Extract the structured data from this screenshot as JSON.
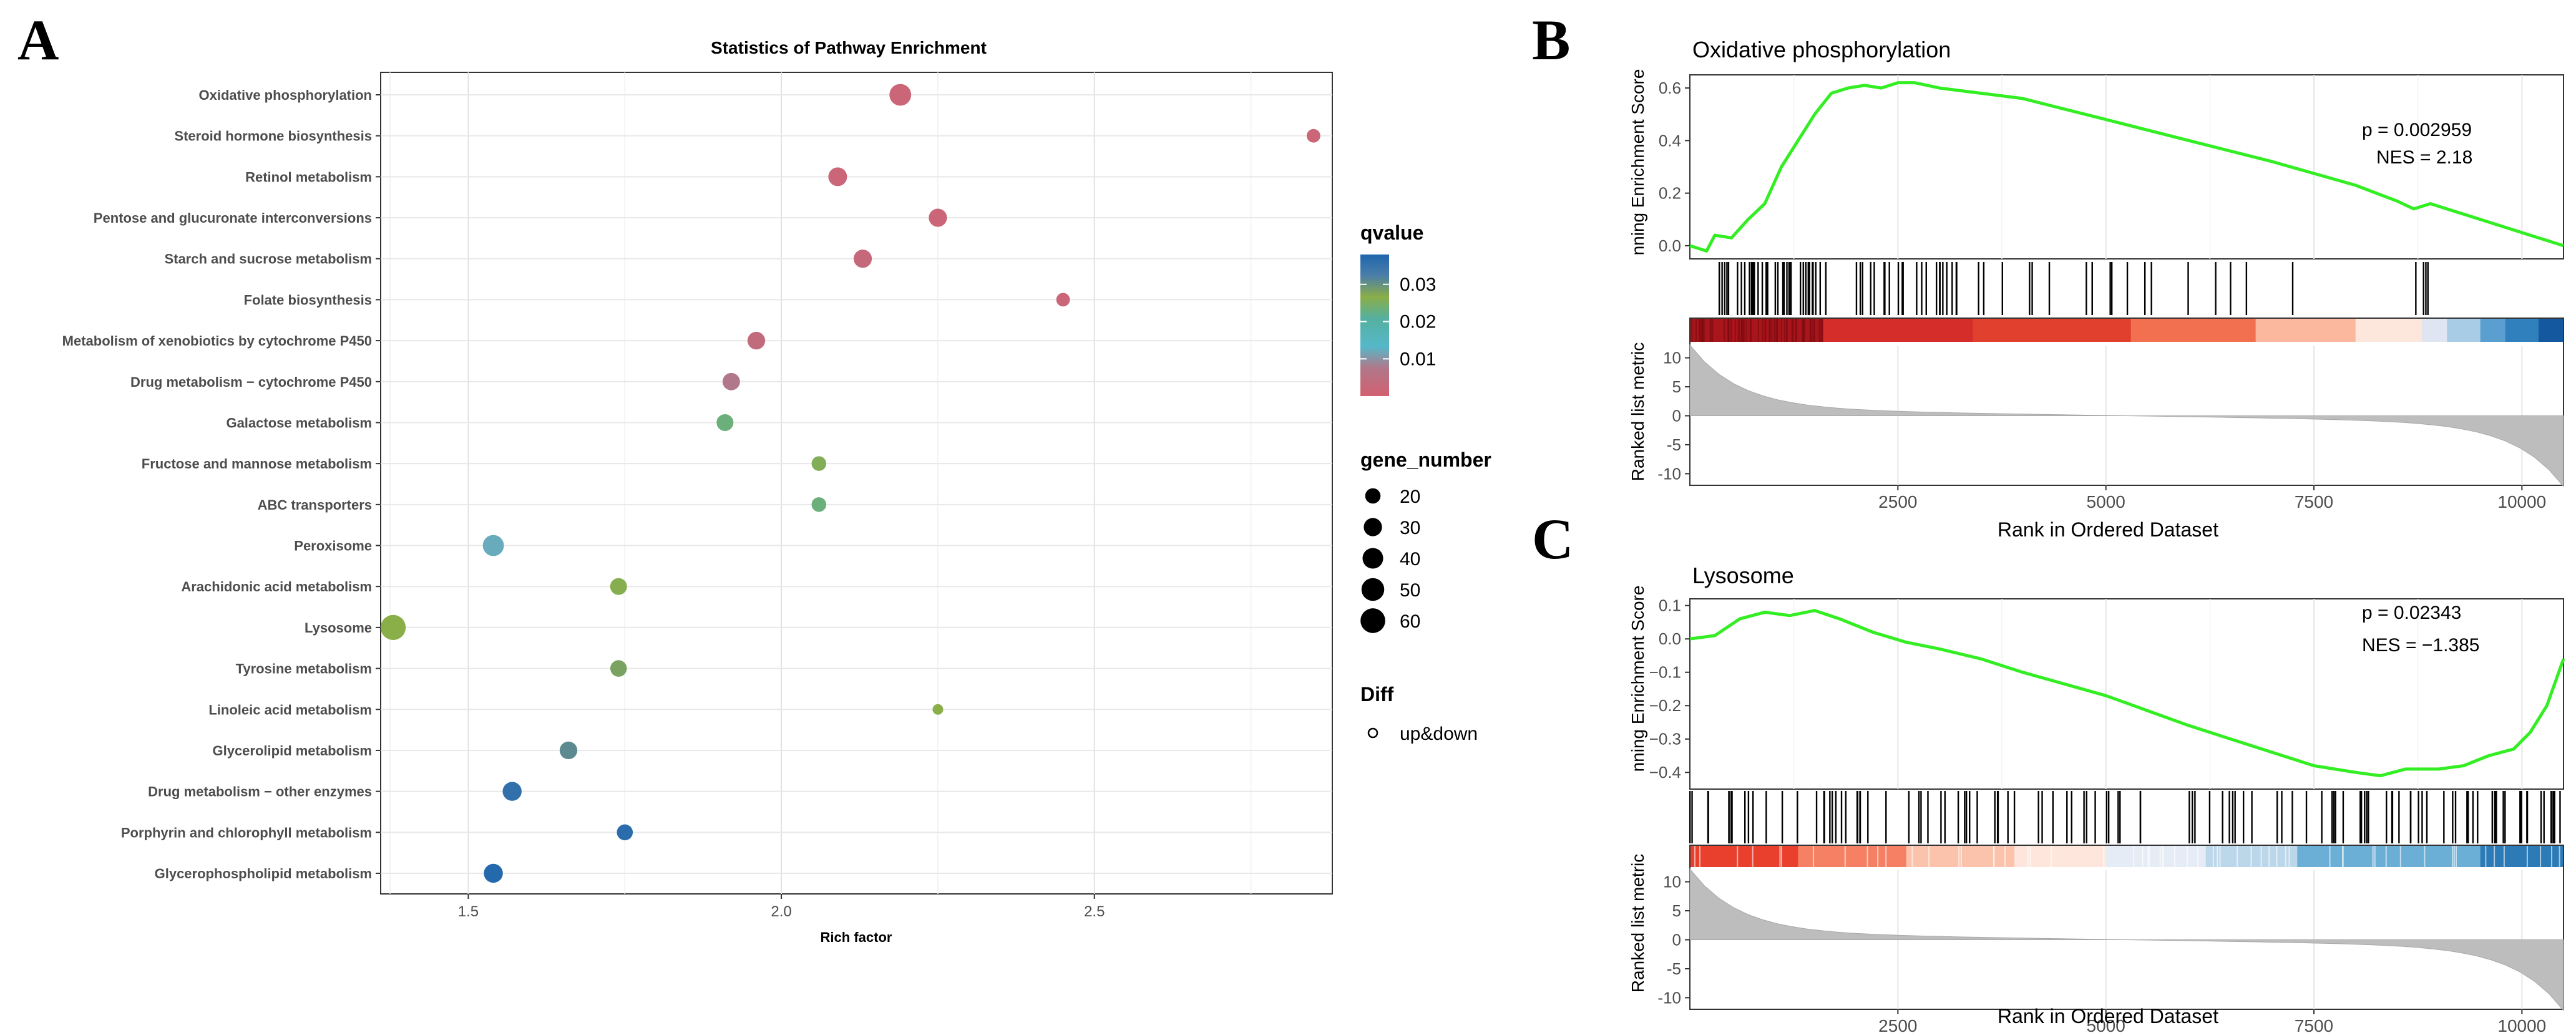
{
  "panels": {
    "a": {
      "label": "A",
      "chart_data": {
        "type": "scatter",
        "title": "Statistics of Pathway Enrichment",
        "xlabel": "Rich factor",
        "ylabel": "",
        "xlim": [
          1.36,
          2.88
        ],
        "xticks": [
          1.5,
          2.0,
          2.5
        ],
        "xtick_labels": [
          "1.5",
          "2.0",
          "2.5"
        ],
        "grid": true,
        "points": [
          {
            "pathway": "Oxidative phosphorylation",
            "x": 2.19,
            "gene_number": 45,
            "qvalue": 0.001
          },
          {
            "pathway": "Steroid hormone biosynthesis",
            "x": 2.85,
            "gene_number": 15,
            "qvalue": 0.001
          },
          {
            "pathway": "Retinol metabolism",
            "x": 2.09,
            "gene_number": 32,
            "qvalue": 0.001
          },
          {
            "pathway": "Pentose and glucuronate interconversions",
            "x": 2.25,
            "gene_number": 30,
            "qvalue": 0.001
          },
          {
            "pathway": "Starch and sucrose metabolism",
            "x": 2.13,
            "gene_number": 30,
            "qvalue": 0.0015
          },
          {
            "pathway": "Folate biosynthesis",
            "x": 2.45,
            "gene_number": 15,
            "qvalue": 0.001
          },
          {
            "pathway": "Metabolism of xenobiotics by cytochrome P450",
            "x": 1.96,
            "gene_number": 28,
            "qvalue": 0.002
          },
          {
            "pathway": "Drug metabolism − cytochrome P450",
            "x": 1.92,
            "gene_number": 27,
            "qvalue": 0.004
          },
          {
            "pathway": "Galactose metabolism",
            "x": 1.91,
            "gene_number": 25,
            "qvalue": 0.02
          },
          {
            "pathway": "Fructose and mannose metabolism",
            "x": 2.06,
            "gene_number": 18,
            "qvalue": 0.025
          },
          {
            "pathway": "ABC transporters",
            "x": 2.06,
            "gene_number": 18,
            "qvalue": 0.02
          },
          {
            "pathway": "Peroxisome",
            "x": 1.54,
            "gene_number": 42,
            "qvalue": 0.008
          },
          {
            "pathway": "Arachidonic acid metabolism",
            "x": 1.74,
            "gene_number": 25,
            "qvalue": 0.026
          },
          {
            "pathway": "Lysosome",
            "x": 1.38,
            "gene_number": 62,
            "qvalue": 0.027
          },
          {
            "pathway": "Tyrosine metabolism",
            "x": 1.74,
            "gene_number": 24,
            "qvalue": 0.028
          },
          {
            "pathway": "Linoleic acid metabolism",
            "x": 2.25,
            "gene_number": 8,
            "qvalue": 0.027
          },
          {
            "pathway": "Glycerolipid metabolism",
            "x": 1.66,
            "gene_number": 28,
            "qvalue": 0.03
          },
          {
            "pathway": "Drug metabolism − other enzymes",
            "x": 1.57,
            "gene_number": 33,
            "qvalue": 0.035
          },
          {
            "pathway": "Porphyrin and chlorophyll metabolism",
            "x": 1.75,
            "gene_number": 22,
            "qvalue": 0.036
          },
          {
            "pathway": "Glycerophospholipid metabolism",
            "x": 1.54,
            "gene_number": 33,
            "qvalue": 0.037
          }
        ],
        "legend_qvalue": {
          "title": "qvalue",
          "range": [
            0,
            0.038
          ],
          "ticks": [
            0.01,
            0.02,
            0.03
          ],
          "tick_labels": [
            "0.01",
            "0.02",
            "0.03"
          ]
        },
        "legend_size": {
          "title": "gene_number",
          "values": [
            20,
            30,
            40,
            50,
            60
          ],
          "labels": [
            "20",
            "30",
            "40",
            "50",
            "60"
          ]
        },
        "legend_diff": {
          "title": "Diff",
          "label": "up&down"
        }
      }
    },
    "b": {
      "label": "B",
      "chart_data": {
        "type": "line",
        "title": "Oxidative phosphorylation",
        "ylabel": "nning Enrichment Score",
        "ylabel_bottom": "Ranked list metric",
        "xlabel": "Rank in Ordered Dataset",
        "xlim": [
          0,
          10500
        ],
        "xticks": [
          2500,
          5000,
          7500,
          10000
        ],
        "xtick_labels": [
          "2500",
          "5000",
          "7500",
          "10000"
        ],
        "ylim": [
          -0.05,
          0.65
        ],
        "yticks": [
          0.0,
          0.2,
          0.4,
          0.6
        ],
        "ytick_labels": [
          "0.0",
          "0.2",
          "0.4",
          "0.6"
        ],
        "metric_ticks": [
          10,
          5,
          0,
          -5,
          -10
        ],
        "metric_tick_labels": [
          "10",
          "5",
          "0",
          "-5",
          "-10"
        ],
        "stats_p": "p = 0.002959",
        "stats_nes": "NES = 2.18",
        "es_curve": {
          "x": [
            0,
            200,
            300,
            500,
            700,
            900,
            1100,
            1300,
            1500,
            1700,
            1900,
            2100,
            2300,
            2500,
            2700,
            3000,
            3500,
            4000,
            4500,
            5000,
            6000,
            7000,
            8000,
            8500,
            8700,
            8900,
            9500,
            10000,
            10500
          ],
          "y": [
            0.0,
            -0.02,
            0.04,
            0.03,
            0.1,
            0.16,
            0.3,
            0.4,
            0.5,
            0.58,
            0.6,
            0.61,
            0.6,
            0.62,
            0.62,
            0.6,
            0.58,
            0.56,
            0.52,
            0.48,
            0.4,
            0.32,
            0.23,
            0.17,
            0.14,
            0.16,
            0.1,
            0.05,
            0.0
          ]
        }
      }
    },
    "c": {
      "label": "C",
      "chart_data": {
        "type": "line",
        "title": "Lysosome",
        "ylabel": "nning Enrichment Score",
        "ylabel_bottom": "Ranked list metric",
        "xlabel": "Rank in Ordered Dataset",
        "xlim": [
          0,
          10500
        ],
        "xticks": [
          2500,
          5000,
          7500,
          10000
        ],
        "xtick_labels": [
          "2500",
          "5000",
          "7500",
          "10000"
        ],
        "ylim": [
          -0.45,
          0.12
        ],
        "yticks": [
          0.1,
          0.0,
          -0.1,
          -0.2,
          -0.3,
          -0.4
        ],
        "ytick_labels": [
          "0.1",
          "0.0",
          "−0.1",
          "−0.2",
          "−0.3",
          "−0.4"
        ],
        "metric_ticks": [
          10,
          5,
          0,
          -5,
          -10
        ],
        "metric_tick_labels": [
          "10",
          "5",
          "0",
          "-5",
          "-10"
        ],
        "stats_p": "p = 0.02343",
        "stats_nes": "NES = −1.385",
        "es_curve": {
          "x": [
            0,
            300,
            600,
            900,
            1200,
            1500,
            1800,
            2200,
            2600,
            3000,
            3500,
            4000,
            5000,
            6000,
            7000,
            7500,
            8000,
            8300,
            8600,
            9000,
            9300,
            9600,
            9900,
            10100,
            10300,
            10500
          ],
          "y": [
            0.0,
            0.01,
            0.06,
            0.08,
            0.07,
            0.085,
            0.06,
            0.02,
            -0.01,
            -0.03,
            -0.06,
            -0.1,
            -0.17,
            -0.26,
            -0.34,
            -0.38,
            -0.4,
            -0.41,
            -0.39,
            -0.39,
            -0.38,
            -0.35,
            -0.33,
            -0.28,
            -0.2,
            -0.06
          ]
        }
      }
    }
  }
}
